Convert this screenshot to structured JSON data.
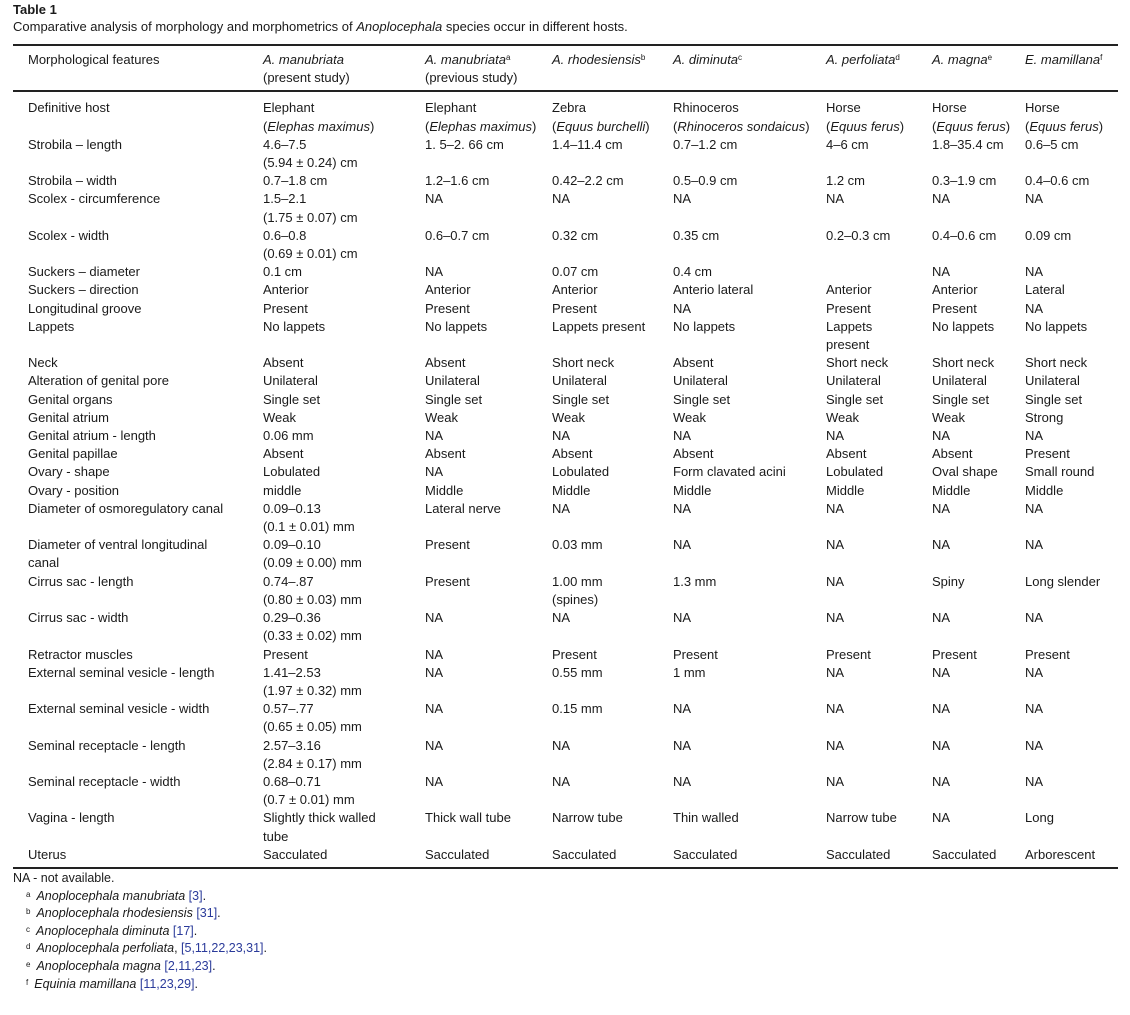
{
  "title": "Table 1",
  "caption": {
    "before": "Comparative analysis of morphology and morphometrics of ",
    "genus": "Anoplocephala",
    "after": " species occur in different hosts."
  },
  "columns": [
    {
      "species": "Morphological features",
      "note": "",
      "sup": "",
      "plain": true
    },
    {
      "species": "A. manubriata",
      "note": "(present study)",
      "sup": ""
    },
    {
      "species": "A. manubriata",
      "note": "(previous study)",
      "sup": "a"
    },
    {
      "species": "A. rhodesiensis",
      "note": "",
      "sup": "b"
    },
    {
      "species": "A. diminuta",
      "note": "",
      "sup": "c"
    },
    {
      "species": "A. perfoliata",
      "note": "",
      "sup": "d"
    },
    {
      "species": "A. magna",
      "note": "",
      "sup": "e"
    },
    {
      "species": "E. mamillana",
      "note": "",
      "sup": "f"
    }
  ],
  "host_row": {
    "label": "Definitive host",
    "cells": [
      {
        "name": "Elephant",
        "latin": "Elephas maximus"
      },
      {
        "name": "Elephant",
        "latin": "Elephas maximus"
      },
      {
        "name": "Zebra",
        "latin": "Equus burchelli"
      },
      {
        "name": "Rhinoceros",
        "latin": "Rhinoceros sondaicus"
      },
      {
        "name": "Horse",
        "latin": "Equus ferus"
      },
      {
        "name": "Horse",
        "latin": "Equus ferus"
      },
      {
        "name": "Horse",
        "latin": "Equus ferus"
      }
    ]
  },
  "rows": [
    [
      "Strobila – length",
      "4.6–7.5\n(5.94 ± 0.24) cm",
      "1. 5–2. 66 cm",
      "1.4–11.4 cm",
      "0.7–1.2 cm",
      "4–6 cm",
      "1.8–35.4 cm",
      "0.6–5 cm"
    ],
    [
      "Strobila – width",
      "0.7–1.8 cm",
      "1.2–1.6 cm",
      "0.42–2.2 cm",
      "0.5–0.9 cm",
      "1.2 cm",
      "0.3–1.9 cm",
      "0.4–0.6 cm"
    ],
    [
      "Scolex - circumference",
      "1.5–2.1\n(1.75 ± 0.07) cm",
      "NA",
      "NA",
      "NA",
      "NA",
      "NA",
      "NA"
    ],
    [
      "Scolex - width",
      "0.6–0.8\n(0.69 ± 0.01) cm",
      "0.6–0.7 cm",
      "0.32 cm",
      "0.35 cm",
      "0.2–0.3 cm",
      "0.4–0.6 cm",
      "0.09 cm"
    ],
    [
      "Suckers – diameter",
      "0.1 cm",
      "NA",
      "0.07 cm",
      "0.4 cm",
      "",
      "NA",
      "NA"
    ],
    [
      "Suckers – direction",
      "Anterior",
      "Anterior",
      "Anterior",
      "Anterio lateral",
      "Anterior",
      "Anterior",
      "Lateral"
    ],
    [
      "Longitudinal groove",
      "Present",
      "Present",
      "Present",
      "NA",
      "Present",
      "Present",
      "NA"
    ],
    [
      "Lappets",
      "No lappets",
      "No lappets",
      "Lappets present",
      "No lappets",
      "Lappets\npresent",
      "No lappets",
      "No lappets"
    ],
    [
      "Neck",
      "Absent",
      "Absent",
      "Short neck",
      "Absent",
      "Short neck",
      "Short neck",
      "Short neck"
    ],
    [
      "Alteration of genital pore",
      "Unilateral",
      "Unilateral",
      "Unilateral",
      "Unilateral",
      "Unilateral",
      "Unilateral",
      "Unilateral"
    ],
    [
      "Genital organs",
      "Single set",
      "Single set",
      "Single set",
      "Single set",
      "Single set",
      "Single set",
      "Single set"
    ],
    [
      "Genital atrium",
      "Weak",
      "Weak",
      "Weak",
      "Weak",
      "Weak",
      "Weak",
      "Strong"
    ],
    [
      "Genital atrium - length",
      "0.06 mm",
      "NA",
      "NA",
      "NA",
      "NA",
      "NA",
      "NA"
    ],
    [
      "Genital papillae",
      "Absent",
      "Absent",
      "Absent",
      "Absent",
      "Absent",
      "Absent",
      "Present"
    ],
    [
      "Ovary - shape",
      "Lobulated",
      "NA",
      "Lobulated",
      "Form clavated acini",
      "Lobulated",
      "Oval shape",
      "Small round"
    ],
    [
      "Ovary - position",
      "middle",
      "Middle",
      "Middle",
      "Middle",
      "Middle",
      "Middle",
      "Middle"
    ],
    [
      "Diameter of osmoregulatory canal",
      "0.09–0.13\n(0.1 ± 0.01) mm",
      "Lateral nerve",
      "NA",
      "NA",
      "NA",
      "NA",
      "NA"
    ],
    [
      "Diameter of ventral longitudinal\ncanal",
      "0.09–0.10\n(0.09 ± 0.00) mm",
      "Present",
      "0.03 mm",
      "NA",
      "NA",
      "NA",
      "NA"
    ],
    [
      "Cirrus sac - length",
      "0.74–.87\n(0.80 ± 0.03) mm",
      "Present",
      "1.00 mm\n(spines)",
      "1.3 mm",
      "NA",
      "Spiny",
      "Long slender"
    ],
    [
      "Cirrus sac - width",
      "0.29–0.36\n(0.33 ± 0.02) mm",
      "NA",
      "NA",
      "NA",
      "NA",
      "NA",
      "NA"
    ],
    [
      "Retractor muscles",
      "Present",
      "NA",
      "Present",
      "Present",
      "Present",
      "Present",
      "Present"
    ],
    [
      "External seminal vesicle - length",
      "1.41–2.53\n(1.97 ± 0.32) mm",
      "NA",
      "0.55 mm",
      "1 mm",
      "NA",
      "NA",
      "NA"
    ],
    [
      "External seminal vesicle - width",
      "0.57–.77\n(0.65 ± 0.05) mm",
      "NA",
      "0.15 mm",
      "NA",
      "NA",
      "NA",
      "NA"
    ],
    [
      "Seminal receptacle - length",
      "2.57–3.16\n(2.84 ± 0.17) mm",
      "NA",
      "NA",
      "NA",
      "NA",
      "NA",
      "NA"
    ],
    [
      "Seminal receptacle - width",
      "0.68–0.71\n(0.7 ± 0.01) mm",
      "NA",
      "NA",
      "NA",
      "NA",
      "NA",
      "NA"
    ],
    [
      "Vagina - length",
      "Slightly thick walled\ntube",
      "Thick wall tube",
      "Narrow tube",
      "Thin walled",
      "Narrow tube",
      "NA",
      "Long"
    ],
    [
      "Uterus",
      "Sacculated",
      "Sacculated",
      "Sacculated",
      "Sacculated",
      "Sacculated",
      "Sacculated",
      "Arborescent"
    ]
  ],
  "footnotes": {
    "na_note": "NA - not available.",
    "items": [
      {
        "mark": "a",
        "name": "Anoplocephala manubriata",
        "sep": " ",
        "refs": "[3]",
        "end": "."
      },
      {
        "mark": "b",
        "name": "Anoplocephala rhodesiensis",
        "sep": " ",
        "refs": "[31]",
        "end": "."
      },
      {
        "mark": "c",
        "name": "Anoplocephala diminuta",
        "sep": " ",
        "refs": "[17]",
        "end": "."
      },
      {
        "mark": "d",
        "name": "Anoplocephala perfoliata",
        "sep": ", ",
        "refs": "[5,11,22,23,31]",
        "end": "."
      },
      {
        "mark": "e",
        "name": "Anoplocephala magna",
        "sep": " ",
        "refs": "[2,11,23]",
        "end": "."
      },
      {
        "mark": "f",
        "name": "Equinia mamillana",
        "sep": " ",
        "refs": "[11,23,29]",
        "end": "."
      }
    ]
  }
}
